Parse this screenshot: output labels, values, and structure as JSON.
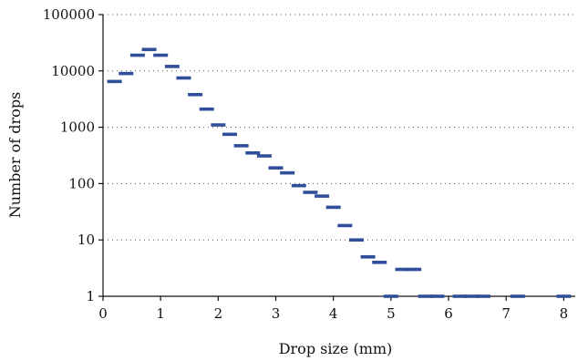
{
  "chart_data": {
    "type": "scatter",
    "title": "",
    "xlabel": "Drop size (mm)",
    "ylabel": "Number of drops",
    "xlim": [
      0,
      8.2
    ],
    "ylim": [
      1,
      100000
    ],
    "yscale": "log",
    "grid": "horizontal dotted",
    "legend": "none",
    "marker": "dash",
    "x_ticks": [
      "0",
      "1",
      "2",
      "3",
      "4",
      "5",
      "6",
      "7",
      "8"
    ],
    "y_ticks": [
      "1",
      "10",
      "100",
      "1000",
      "10000",
      "100000"
    ],
    "color": "#2f4f9a",
    "points": [
      {
        "x": 0.2,
        "y": 6500
      },
      {
        "x": 0.4,
        "y": 9000
      },
      {
        "x": 0.6,
        "y": 19000
      },
      {
        "x": 0.8,
        "y": 24000
      },
      {
        "x": 1.0,
        "y": 19000
      },
      {
        "x": 1.2,
        "y": 12000
      },
      {
        "x": 1.4,
        "y": 7500
      },
      {
        "x": 1.6,
        "y": 3800
      },
      {
        "x": 1.8,
        "y": 2100
      },
      {
        "x": 2.0,
        "y": 1100
      },
      {
        "x": 2.2,
        "y": 750
      },
      {
        "x": 2.4,
        "y": 470
      },
      {
        "x": 2.6,
        "y": 350
      },
      {
        "x": 2.8,
        "y": 310
      },
      {
        "x": 3.0,
        "y": 190
      },
      {
        "x": 3.2,
        "y": 155
      },
      {
        "x": 3.4,
        "y": 92
      },
      {
        "x": 3.6,
        "y": 70
      },
      {
        "x": 3.8,
        "y": 60
      },
      {
        "x": 4.0,
        "y": 38
      },
      {
        "x": 4.2,
        "y": 18
      },
      {
        "x": 4.4,
        "y": 10
      },
      {
        "x": 4.6,
        "y": 5
      },
      {
        "x": 4.8,
        "y": 4
      },
      {
        "x": 5.0,
        "y": 1
      },
      {
        "x": 5.2,
        "y": 3
      },
      {
        "x": 5.4,
        "y": 3
      },
      {
        "x": 5.6,
        "y": 1
      },
      {
        "x": 5.8,
        "y": 1
      },
      {
        "x": 6.2,
        "y": 1
      },
      {
        "x": 6.4,
        "y": 1
      },
      {
        "x": 6.6,
        "y": 1
      },
      {
        "x": 7.2,
        "y": 1
      },
      {
        "x": 8.0,
        "y": 1
      }
    ]
  }
}
